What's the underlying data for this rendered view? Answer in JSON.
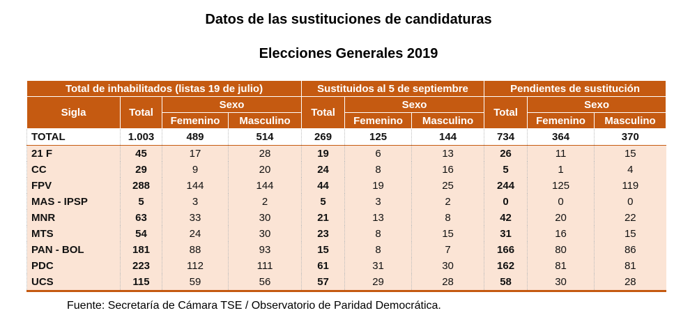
{
  "title": "Datos de las sustituciones de candidaturas",
  "subtitle": "Elecciones Generales 2019",
  "header": {
    "groups": [
      "Total de inhabilitados (listas 19 de julio)",
      "Sustituidos al 5 de septiembre",
      "Pendientes de sustitución"
    ],
    "sigla": "Sigla",
    "total": "Total",
    "sexo": "Sexo",
    "femenino": "Femenino",
    "masculino": "Masculino"
  },
  "colors": {
    "header": "#c55a11",
    "row": "#fbe4d5"
  },
  "total_row": [
    "TOTAL",
    "1.003",
    "489",
    "514",
    "269",
    "125",
    "144",
    "734",
    "364",
    "370"
  ],
  "rows": [
    [
      "21 F",
      "45",
      "17",
      "28",
      "19",
      "6",
      "13",
      "26",
      "11",
      "15"
    ],
    [
      "CC",
      "29",
      "9",
      "20",
      "24",
      "8",
      "16",
      "5",
      "1",
      "4"
    ],
    [
      "FPV",
      "288",
      "144",
      "144",
      "44",
      "19",
      "25",
      "244",
      "125",
      "119"
    ],
    [
      "MAS - IPSP",
      "5",
      "3",
      "2",
      "5",
      "3",
      "2",
      "0",
      "0",
      "0"
    ],
    [
      "MNR",
      "63",
      "33",
      "30",
      "21",
      "13",
      "8",
      "42",
      "20",
      "22"
    ],
    [
      "MTS",
      "54",
      "24",
      "30",
      "23",
      "8",
      "15",
      "31",
      "16",
      "15"
    ],
    [
      "PAN - BOL",
      "181",
      "88",
      "93",
      "15",
      "8",
      "7",
      "166",
      "80",
      "86"
    ],
    [
      "PDC",
      "223",
      "112",
      "111",
      "61",
      "31",
      "30",
      "162",
      "81",
      "81"
    ],
    [
      "UCS",
      "115",
      "59",
      "56",
      "57",
      "29",
      "28",
      "58",
      "30",
      "28"
    ]
  ],
  "source": "Fuente: Secretaría de Cámara TSE / Observatorio de Paridad Democrática."
}
